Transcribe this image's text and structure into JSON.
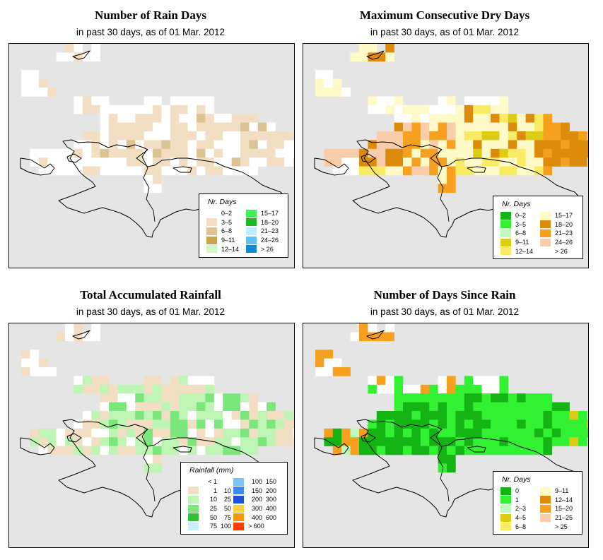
{
  "colors": {
    "ocean": "#e5e5e5",
    "outline": "#000000"
  },
  "panels": [
    {
      "id": "rain_days",
      "title": "Number of Rain Days",
      "subtitle": "in past 30 days, as of  01 Mar. 2012",
      "legend": {
        "title": "Nr. Days",
        "columns": [
          [
            {
              "label": "0–2",
              "color": "#ffffff"
            },
            {
              "label": "3–5",
              "color": "#f2dfc3"
            },
            {
              "label": "6–8",
              "color": "#dcc393"
            },
            {
              "label": "9–11",
              "color": "#c9a64b"
            },
            {
              "label": "12–14",
              "color": "#d2f7c7"
            }
          ],
          [
            {
              "label": "15–17",
              "color": "#3cf055"
            },
            {
              "label": "18–20",
              "color": "#21b723"
            },
            {
              "label": "21–23",
              "color": "#bfefff"
            },
            {
              "label": "24–26",
              "color": "#5fc0f7"
            },
            {
              "label": "> 26",
              "color": "#0a8ad7"
            }
          ]
        ]
      }
    },
    {
      "id": "max_dry_days",
      "title": "Maximum Consecutive Dry Days",
      "subtitle": "in past 30 days, as of  01 Mar. 2012",
      "legend": {
        "title": "Nr. Days",
        "columns": [
          [
            {
              "label": "0–2",
              "color": "#14b414"
            },
            {
              "label": "3–5",
              "color": "#32f032"
            },
            {
              "label": "6–8",
              "color": "#bdfabd"
            },
            {
              "label": "9–11",
              "color": "#dccd14"
            },
            {
              "label": "12–14",
              "color": "#faeb64"
            }
          ],
          [
            {
              "label": "15–17",
              "color": "#fffac8"
            },
            {
              "label": "18–20",
              "color": "#dc8c0a"
            },
            {
              "label": "21–23",
              "color": "#f5a01e"
            },
            {
              "label": "24–26",
              "color": "#facdaa"
            },
            {
              "label": "> 26",
              "color": "#ffffff"
            }
          ]
        ]
      }
    },
    {
      "id": "total_rainfall",
      "title": "Total Accumulated Rainfall",
      "subtitle": "in past 30 days, as of  01 Mar. 2012",
      "legend": {
        "title": "Rainfall (mm)",
        "columns": [
          [
            {
              "lo": "< 1",
              "hi": "",
              "color": "#ffffff"
            },
            {
              "lo": "1",
              "hi": "10",
              "color": "#f2dfc3"
            },
            {
              "lo": "10",
              "hi": "25",
              "color": "#bff5b4"
            },
            {
              "lo": "25",
              "hi": "50",
              "color": "#7be67b"
            },
            {
              "lo": "50",
              "hi": "75",
              "color": "#2fc32f"
            },
            {
              "lo": "75",
              "hi": "100",
              "color": "#c8f0ff"
            }
          ],
          [
            {
              "lo": "100",
              "hi": "150",
              "color": "#7ec3f5"
            },
            {
              "lo": "150",
              "hi": "200",
              "color": "#3c8cf0"
            },
            {
              "lo": "200",
              "hi": "300",
              "color": "#1e50dc"
            },
            {
              "lo": "300",
              "hi": "400",
              "color": "#fad23c"
            },
            {
              "lo": "400",
              "hi": "600",
              "color": "#f5960a"
            },
            {
              "lo": "> 600",
              "hi": "",
              "color": "#fa3c0a"
            }
          ]
        ]
      }
    },
    {
      "id": "days_since_rain",
      "title": "Number of Days Since Rain",
      "subtitle": "in past 30 days, as of  01 Mar. 2012",
      "legend": {
        "title": "Nr. Days",
        "columns": [
          [
            {
              "label": "0",
              "color": "#14b414"
            },
            {
              "label": "1",
              "color": "#32f032"
            },
            {
              "label": "2–3",
              "color": "#bdfabd"
            },
            {
              "label": "4–5",
              "color": "#dccd14"
            },
            {
              "label": "6–8",
              "color": "#faeb64"
            }
          ],
          [
            {
              "label": "9–11",
              "color": "#fffac8"
            },
            {
              "label": "12–14",
              "color": "#dc8c0a"
            },
            {
              "label": "15–20",
              "color": "#f5a01e"
            },
            {
              "label": "21–25",
              "color": "#facdaa"
            },
            {
              "label": "> 25",
              "color": "#ffffff"
            }
          ]
        ]
      }
    }
  ]
}
